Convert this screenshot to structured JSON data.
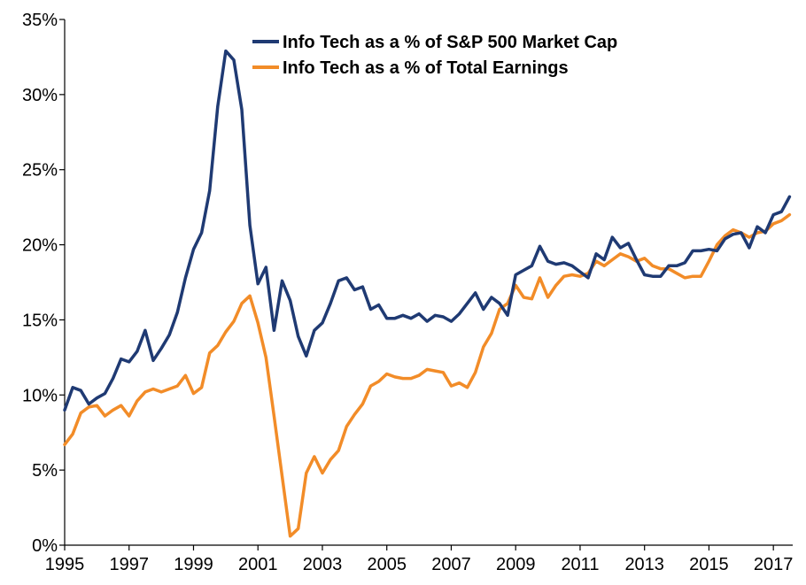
{
  "chart_data": {
    "type": "line",
    "title": "",
    "xlabel": "",
    "ylabel": "",
    "xlim": [
      1995,
      2017.6
    ],
    "ylim": [
      0,
      35
    ],
    "x_ticks": [
      1995,
      1997,
      1999,
      2001,
      2003,
      2005,
      2007,
      2009,
      2011,
      2013,
      2015,
      2017
    ],
    "x_tick_labels": [
      "1995",
      "1997",
      "1999",
      "2001",
      "2003",
      "2005",
      "2007",
      "2009",
      "2011",
      "2013",
      "2015",
      "2017"
    ],
    "y_ticks": [
      0,
      5,
      10,
      15,
      20,
      25,
      30,
      35
    ],
    "y_tick_labels": [
      "0%",
      "5%",
      "10%",
      "15%",
      "20%",
      "25%",
      "30%",
      "35%"
    ],
    "grid": false,
    "legend_position": "top-center",
    "series": [
      {
        "name": "Info Tech as a % of S&P 500 Market Cap",
        "color": "#1f3a73",
        "points": [
          [
            1995.0,
            9.0
          ],
          [
            1995.25,
            10.5
          ],
          [
            1995.5,
            10.3
          ],
          [
            1995.75,
            9.4
          ],
          [
            1996.0,
            9.8
          ],
          [
            1996.25,
            10.1
          ],
          [
            1996.5,
            11.1
          ],
          [
            1996.75,
            12.4
          ],
          [
            1997.0,
            12.2
          ],
          [
            1997.25,
            12.9
          ],
          [
            1997.5,
            14.3
          ],
          [
            1997.75,
            12.3
          ],
          [
            1998.0,
            13.1
          ],
          [
            1998.25,
            14.0
          ],
          [
            1998.5,
            15.5
          ],
          [
            1998.75,
            17.8
          ],
          [
            1999.0,
            19.7
          ],
          [
            1999.25,
            20.8
          ],
          [
            1999.5,
            23.6
          ],
          [
            1999.75,
            29.2
          ],
          [
            2000.0,
            32.9
          ],
          [
            2000.25,
            32.3
          ],
          [
            2000.5,
            29.0
          ],
          [
            2000.75,
            21.3
          ],
          [
            2001.0,
            17.4
          ],
          [
            2001.25,
            18.5
          ],
          [
            2001.5,
            14.3
          ],
          [
            2001.75,
            17.6
          ],
          [
            2002.0,
            16.3
          ],
          [
            2002.25,
            13.9
          ],
          [
            2002.5,
            12.6
          ],
          [
            2002.75,
            14.3
          ],
          [
            2003.0,
            14.8
          ],
          [
            2003.25,
            16.1
          ],
          [
            2003.5,
            17.6
          ],
          [
            2003.75,
            17.8
          ],
          [
            2004.0,
            17.0
          ],
          [
            2004.25,
            17.2
          ],
          [
            2004.5,
            15.7
          ],
          [
            2004.75,
            16.0
          ],
          [
            2005.0,
            15.1
          ],
          [
            2005.25,
            15.1
          ],
          [
            2005.5,
            15.3
          ],
          [
            2005.75,
            15.1
          ],
          [
            2006.0,
            15.4
          ],
          [
            2006.25,
            14.9
          ],
          [
            2006.5,
            15.3
          ],
          [
            2006.75,
            15.2
          ],
          [
            2007.0,
            14.9
          ],
          [
            2007.25,
            15.4
          ],
          [
            2007.5,
            16.1
          ],
          [
            2007.75,
            16.8
          ],
          [
            2008.0,
            15.7
          ],
          [
            2008.25,
            16.5
          ],
          [
            2008.5,
            16.1
          ],
          [
            2008.75,
            15.3
          ],
          [
            2009.0,
            18.0
          ],
          [
            2009.25,
            18.3
          ],
          [
            2009.5,
            18.6
          ],
          [
            2009.75,
            19.9
          ],
          [
            2010.0,
            18.9
          ],
          [
            2010.25,
            18.7
          ],
          [
            2010.5,
            18.8
          ],
          [
            2010.75,
            18.6
          ],
          [
            2011.0,
            18.2
          ],
          [
            2011.25,
            17.8
          ],
          [
            2011.5,
            19.4
          ],
          [
            2011.75,
            19.0
          ],
          [
            2012.0,
            20.5
          ],
          [
            2012.25,
            19.8
          ],
          [
            2012.5,
            20.1
          ],
          [
            2012.75,
            19.0
          ],
          [
            2013.0,
            18.0
          ],
          [
            2013.25,
            17.9
          ],
          [
            2013.5,
            17.9
          ],
          [
            2013.75,
            18.6
          ],
          [
            2014.0,
            18.6
          ],
          [
            2014.25,
            18.8
          ],
          [
            2014.5,
            19.6
          ],
          [
            2014.75,
            19.6
          ],
          [
            2015.0,
            19.7
          ],
          [
            2015.25,
            19.6
          ],
          [
            2015.5,
            20.4
          ],
          [
            2015.75,
            20.7
          ],
          [
            2016.0,
            20.8
          ],
          [
            2016.25,
            19.8
          ],
          [
            2016.5,
            21.2
          ],
          [
            2016.75,
            20.8
          ],
          [
            2017.0,
            22.0
          ],
          [
            2017.25,
            22.2
          ],
          [
            2017.5,
            23.2
          ]
        ]
      },
      {
        "name": "Info Tech as a % of Total Earnings",
        "color": "#f28c28",
        "points": [
          [
            1995.0,
            6.7
          ],
          [
            1995.25,
            7.4
          ],
          [
            1995.5,
            8.8
          ],
          [
            1995.75,
            9.2
          ],
          [
            1996.0,
            9.3
          ],
          [
            1996.25,
            8.6
          ],
          [
            1996.5,
            9.0
          ],
          [
            1996.75,
            9.3
          ],
          [
            1997.0,
            8.6
          ],
          [
            1997.25,
            9.6
          ],
          [
            1997.5,
            10.2
          ],
          [
            1997.75,
            10.4
          ],
          [
            1998.0,
            10.2
          ],
          [
            1998.25,
            10.4
          ],
          [
            1998.5,
            10.6
          ],
          [
            1998.75,
            11.3
          ],
          [
            1999.0,
            10.1
          ],
          [
            1999.25,
            10.5
          ],
          [
            1999.5,
            12.8
          ],
          [
            1999.75,
            13.3
          ],
          [
            2000.0,
            14.2
          ],
          [
            2000.25,
            14.9
          ],
          [
            2000.5,
            16.1
          ],
          [
            2000.75,
            16.6
          ],
          [
            2001.0,
            14.8
          ],
          [
            2001.25,
            12.5
          ],
          [
            2001.5,
            8.6
          ],
          [
            2001.75,
            4.6
          ],
          [
            2002.0,
            0.6
          ],
          [
            2002.25,
            1.1
          ],
          [
            2002.5,
            4.8
          ],
          [
            2002.75,
            5.9
          ],
          [
            2003.0,
            4.8
          ],
          [
            2003.25,
            5.7
          ],
          [
            2003.5,
            6.3
          ],
          [
            2003.75,
            7.9
          ],
          [
            2004.0,
            8.7
          ],
          [
            2004.25,
            9.4
          ],
          [
            2004.5,
            10.6
          ],
          [
            2004.75,
            10.9
          ],
          [
            2005.0,
            11.4
          ],
          [
            2005.25,
            11.2
          ],
          [
            2005.5,
            11.1
          ],
          [
            2005.75,
            11.1
          ],
          [
            2006.0,
            11.3
          ],
          [
            2006.25,
            11.7
          ],
          [
            2006.5,
            11.6
          ],
          [
            2006.75,
            11.5
          ],
          [
            2007.0,
            10.6
          ],
          [
            2007.25,
            10.8
          ],
          [
            2007.5,
            10.5
          ],
          [
            2007.75,
            11.5
          ],
          [
            2008.0,
            13.2
          ],
          [
            2008.25,
            14.1
          ],
          [
            2008.5,
            15.7
          ],
          [
            2008.75,
            16.1
          ],
          [
            2009.0,
            17.3
          ],
          [
            2009.25,
            16.5
          ],
          [
            2009.5,
            16.4
          ],
          [
            2009.75,
            17.8
          ],
          [
            2010.0,
            16.5
          ],
          [
            2010.25,
            17.3
          ],
          [
            2010.5,
            17.9
          ],
          [
            2010.75,
            18.0
          ],
          [
            2011.0,
            17.9
          ],
          [
            2011.25,
            18.1
          ],
          [
            2011.5,
            18.9
          ],
          [
            2011.75,
            18.6
          ],
          [
            2012.0,
            19.0
          ],
          [
            2012.25,
            19.4
          ],
          [
            2012.5,
            19.2
          ],
          [
            2012.75,
            18.9
          ],
          [
            2013.0,
            19.1
          ],
          [
            2013.25,
            18.6
          ],
          [
            2013.5,
            18.4
          ],
          [
            2013.75,
            18.4
          ],
          [
            2014.0,
            18.1
          ],
          [
            2014.25,
            17.8
          ],
          [
            2014.5,
            17.9
          ],
          [
            2014.75,
            17.9
          ],
          [
            2015.0,
            18.9
          ],
          [
            2015.25,
            20.0
          ],
          [
            2015.5,
            20.6
          ],
          [
            2015.75,
            21.0
          ],
          [
            2016.0,
            20.8
          ],
          [
            2016.25,
            20.5
          ],
          [
            2016.5,
            20.8
          ],
          [
            2016.75,
            20.9
          ],
          [
            2017.0,
            21.4
          ],
          [
            2017.25,
            21.6
          ],
          [
            2017.5,
            22.0
          ]
        ]
      }
    ]
  }
}
